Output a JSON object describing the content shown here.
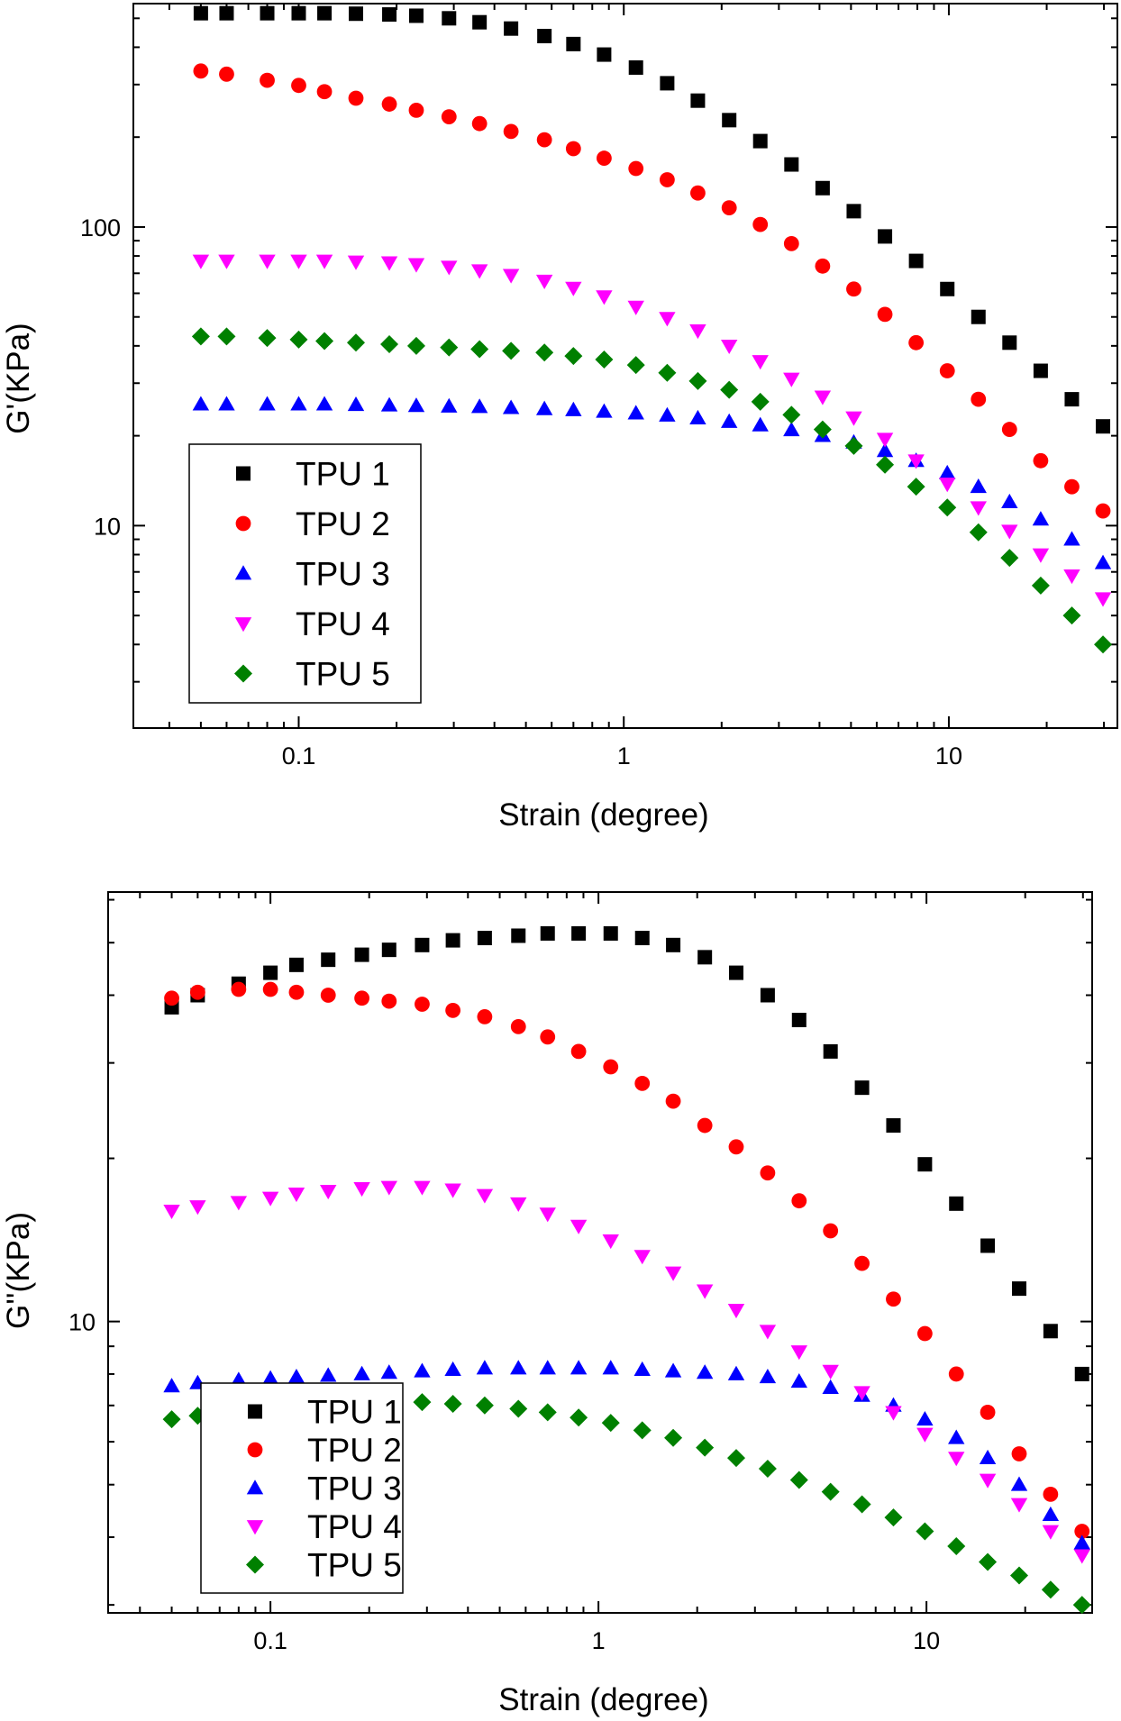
{
  "chart_data": [
    {
      "type": "scatter",
      "x_scale": "log",
      "y_scale": "log",
      "xlabel": "Strain (degree)",
      "ylabel": "G'(KPa)",
      "xlim": [
        0.031,
        33
      ],
      "ylim": [
        2.1,
        560
      ],
      "x_ticks": [
        0.1,
        1,
        10
      ],
      "x_tick_labels": [
        "0.1",
        "1",
        "10"
      ],
      "y_ticks": [
        10,
        100
      ],
      "y_tick_labels": [
        "10",
        "100"
      ],
      "legend_position": "bottom-left",
      "x": [
        0.05,
        0.06,
        0.08,
        0.1,
        0.12,
        0.15,
        0.19,
        0.23,
        0.29,
        0.36,
        0.45,
        0.57,
        0.7,
        0.87,
        1.09,
        1.36,
        1.69,
        2.11,
        2.63,
        3.28,
        4.09,
        5.1,
        6.36,
        7.93,
        9.89,
        12.33,
        15.37,
        19.17,
        23.9,
        29.8
      ],
      "series": [
        {
          "name": "TPU 1",
          "marker": "square",
          "color": "#000000",
          "values": [
            520,
            520,
            520,
            520,
            520,
            518,
            515,
            510,
            500,
            485,
            462,
            436,
            410,
            378,
            342,
            303,
            265,
            228,
            194,
            162,
            135,
            113,
            93,
            77,
            62,
            50,
            41,
            33,
            26.5,
            21.5
          ]
        },
        {
          "name": "TPU 2",
          "marker": "circle",
          "color": "#ff0000",
          "values": [
            333,
            325,
            310,
            298,
            284,
            270,
            258,
            246,
            234,
            222,
            209,
            196,
            183,
            170,
            157,
            144,
            130,
            116,
            102,
            88,
            74,
            62,
            51,
            41,
            33,
            26.5,
            21,
            16.5,
            13.5,
            11.2
          ]
        },
        {
          "name": "TPU 3",
          "marker": "triangle-up",
          "color": "#0000ff",
          "values": [
            25.5,
            25.5,
            25.5,
            25.5,
            25.5,
            25.4,
            25.3,
            25.2,
            25.1,
            25,
            24.8,
            24.6,
            24.4,
            24.1,
            23.8,
            23.4,
            22.9,
            22.3,
            21.7,
            20.9,
            20,
            19,
            17.8,
            16.5,
            15,
            13.5,
            12,
            10.5,
            9,
            7.5
          ]
        },
        {
          "name": "TPU 4",
          "marker": "triangle-down",
          "color": "#ff00ff",
          "values": [
            77,
            77,
            77,
            77,
            77,
            76.5,
            76,
            75,
            73.5,
            71.5,
            69,
            66,
            62.5,
            58.5,
            54,
            49.5,
            45,
            40,
            35.5,
            31,
            27,
            23,
            19.5,
            16.5,
            13.8,
            11.5,
            9.6,
            8,
            6.8,
            5.7
          ]
        },
        {
          "name": "TPU 5",
          "marker": "diamond",
          "color": "#008000",
          "values": [
            43,
            43,
            42.5,
            42,
            41.5,
            41,
            40.5,
            40,
            39.5,
            39,
            38.5,
            38,
            37,
            36,
            34.5,
            32.5,
            30.5,
            28.5,
            26,
            23.5,
            21,
            18.5,
            16,
            13.5,
            11.5,
            9.5,
            7.8,
            6.3,
            5,
            4
          ]
        }
      ]
    },
    {
      "type": "scatter",
      "x_scale": "log",
      "y_scale": "log",
      "xlabel": "Strain (degree)",
      "ylabel": "G''(KPa)",
      "xlim": [
        0.032,
        32
      ],
      "ylim": [
        2.9,
        62
      ],
      "x_ticks": [
        0.1,
        1,
        10
      ],
      "x_tick_labels": [
        "0.1",
        "1",
        "10"
      ],
      "y_ticks": [
        10
      ],
      "y_tick_labels": [
        "10"
      ],
      "legend_position": "bottom-left",
      "x": [
        0.05,
        0.06,
        0.08,
        0.1,
        0.12,
        0.15,
        0.19,
        0.23,
        0.29,
        0.36,
        0.45,
        0.57,
        0.7,
        0.87,
        1.09,
        1.36,
        1.69,
        2.11,
        2.63,
        3.28,
        4.09,
        5.1,
        6.36,
        7.93,
        9.89,
        12.33,
        15.37,
        19.17,
        23.9,
        29.8
      ],
      "series": [
        {
          "name": "TPU 1",
          "marker": "square",
          "color": "#000000",
          "values": [
            38,
            40,
            42,
            44,
            45.5,
            46.5,
            47.5,
            48.5,
            49.5,
            50.5,
            51,
            51.5,
            52,
            52,
            52,
            51,
            49.5,
            47,
            44,
            40,
            36,
            31.5,
            27,
            23,
            19.5,
            16.5,
            13.8,
            11.5,
            9.6,
            8
          ]
        },
        {
          "name": "TPU 2",
          "marker": "circle",
          "color": "#ff0000",
          "values": [
            39.5,
            40.5,
            41,
            41,
            40.5,
            40,
            39.5,
            39,
            38.5,
            37.5,
            36.5,
            35,
            33.5,
            31.5,
            29.5,
            27.5,
            25.5,
            23,
            21,
            18.8,
            16.7,
            14.7,
            12.8,
            11,
            9.5,
            8,
            6.8,
            5.7,
            4.8,
            4.1
          ]
        },
        {
          "name": "TPU 3",
          "marker": "triangle-up",
          "color": "#0000ff",
          "values": [
            7.6,
            7.7,
            7.8,
            7.85,
            7.9,
            7.95,
            8,
            8.05,
            8.1,
            8.15,
            8.2,
            8.2,
            8.2,
            8.2,
            8.2,
            8.15,
            8.1,
            8.05,
            8,
            7.9,
            7.75,
            7.55,
            7.3,
            7,
            6.6,
            6.1,
            5.6,
            5,
            4.4,
            3.9
          ]
        },
        {
          "name": "TPU 4",
          "marker": "triangle-down",
          "color": "#ff00ff",
          "values": [
            16,
            16.3,
            16.6,
            16.9,
            17.2,
            17.4,
            17.6,
            17.7,
            17.7,
            17.5,
            17.1,
            16.5,
            15.8,
            15,
            14.1,
            13.2,
            12.3,
            11.4,
            10.5,
            9.6,
            8.8,
            8.1,
            7.4,
            6.8,
            6.2,
            5.6,
            5.1,
            4.6,
            4.1,
            3.7
          ]
        },
        {
          "name": "TPU 5",
          "marker": "diamond",
          "color": "#008000",
          "values": [
            6.6,
            6.7,
            6.8,
            6.9,
            7,
            7.05,
            7.1,
            7.1,
            7.1,
            7.05,
            7,
            6.9,
            6.8,
            6.65,
            6.5,
            6.3,
            6.1,
            5.85,
            5.6,
            5.35,
            5.1,
            4.85,
            4.6,
            4.35,
            4.1,
            3.85,
            3.6,
            3.4,
            3.2,
            3
          ]
        }
      ]
    }
  ]
}
